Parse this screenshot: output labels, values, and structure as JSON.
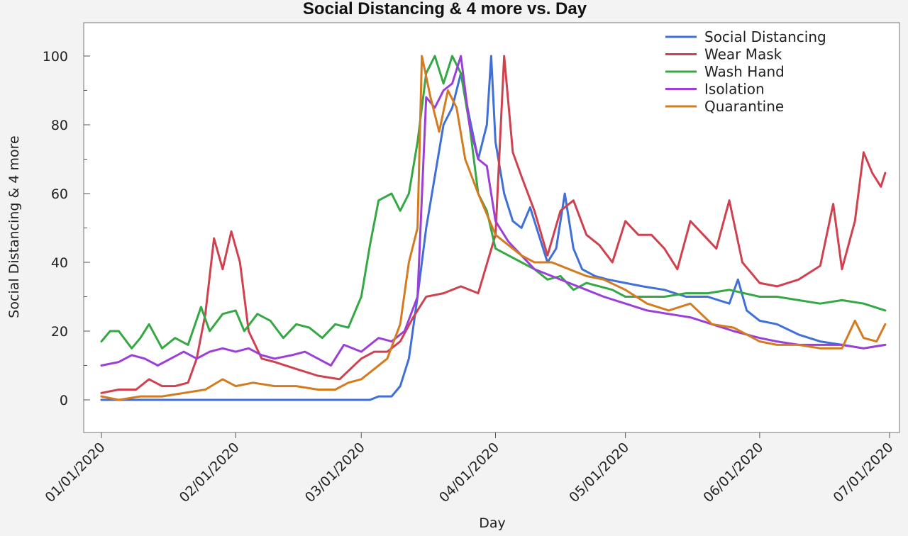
{
  "chart_data": {
    "type": "line",
    "title": "Social Distancing & 4 more vs. Day",
    "xlabel": "Day",
    "ylabel": "Social Distancing & 4 more",
    "x_start": "01/01/2020",
    "x_end": "06/30/2020",
    "x_ticks": [
      "01/01/2020",
      "02/01/2020",
      "03/01/2020",
      "04/01/2020",
      "05/01/2020",
      "06/01/2020",
      "07/01/2020"
    ],
    "ylim": [
      -10,
      110
    ],
    "y_ticks": [
      0,
      20,
      40,
      60,
      80,
      100
    ],
    "grid": false,
    "legend_position": "top-right",
    "series": [
      {
        "name": "Social Distancing",
        "color": "#3f6fd8",
        "points": [
          [
            "01/01/2020",
            0
          ],
          [
            "01/15/2020",
            0
          ],
          [
            "02/01/2020",
            0
          ],
          [
            "02/15/2020",
            0
          ],
          [
            "03/01/2020",
            0
          ],
          [
            "03/03/2020",
            0
          ],
          [
            "03/05/2020",
            1
          ],
          [
            "03/08/2020",
            1
          ],
          [
            "03/10/2020",
            4
          ],
          [
            "03/12/2020",
            12
          ],
          [
            "03/14/2020",
            30
          ],
          [
            "03/16/2020",
            50
          ],
          [
            "03/18/2020",
            65
          ],
          [
            "03/20/2020",
            80
          ],
          [
            "03/22/2020",
            85
          ],
          [
            "03/24/2020",
            95
          ],
          [
            "03/26/2020",
            82
          ],
          [
            "03/28/2020",
            70
          ],
          [
            "03/30/2020",
            80
          ],
          [
            "03/31/2020",
            100
          ],
          [
            "04/01/2020",
            75
          ],
          [
            "04/03/2020",
            60
          ],
          [
            "04/05/2020",
            52
          ],
          [
            "04/07/2020",
            50
          ],
          [
            "04/09/2020",
            56
          ],
          [
            "04/11/2020",
            48
          ],
          [
            "04/13/2020",
            40
          ],
          [
            "04/15/2020",
            44
          ],
          [
            "04/17/2020",
            60
          ],
          [
            "04/19/2020",
            44
          ],
          [
            "04/21/2020",
            38
          ],
          [
            "04/24/2020",
            36
          ],
          [
            "04/27/2020",
            35
          ],
          [
            "05/01/2020",
            34
          ],
          [
            "05/05/2020",
            33
          ],
          [
            "05/10/2020",
            32
          ],
          [
            "05/15/2020",
            30
          ],
          [
            "05/20/2020",
            30
          ],
          [
            "05/25/2020",
            28
          ],
          [
            "05/27/2020",
            35
          ],
          [
            "05/29/2020",
            26
          ],
          [
            "06/01/2020",
            23
          ],
          [
            "06/05/2020",
            22
          ],
          [
            "06/10/2020",
            19
          ],
          [
            "06/15/2020",
            17
          ],
          [
            "06/20/2020",
            16
          ],
          [
            "06/25/2020",
            15
          ],
          [
            "06/30/2020",
            16
          ]
        ]
      },
      {
        "name": "Wear Mask",
        "color": "#d0414f",
        "points": [
          [
            "01/01/2020",
            2
          ],
          [
            "01/05/2020",
            3
          ],
          [
            "01/09/2020",
            3
          ],
          [
            "01/12/2020",
            6
          ],
          [
            "01/15/2020",
            4
          ],
          [
            "01/18/2020",
            4
          ],
          [
            "01/21/2020",
            5
          ],
          [
            "01/23/2020",
            12
          ],
          [
            "01/25/2020",
            25
          ],
          [
            "01/27/2020",
            47
          ],
          [
            "01/29/2020",
            38
          ],
          [
            "01/31/2020",
            49
          ],
          [
            "02/02/2020",
            40
          ],
          [
            "02/04/2020",
            20
          ],
          [
            "02/07/2020",
            12
          ],
          [
            "02/10/2020",
            11
          ],
          [
            "02/15/2020",
            9
          ],
          [
            "02/20/2020",
            7
          ],
          [
            "02/25/2020",
            6
          ],
          [
            "03/01/2020",
            12
          ],
          [
            "03/04/2020",
            14
          ],
          [
            "03/07/2020",
            14
          ],
          [
            "03/10/2020",
            17
          ],
          [
            "03/13/2020",
            24
          ],
          [
            "03/16/2020",
            30
          ],
          [
            "03/20/2020",
            31
          ],
          [
            "03/24/2020",
            33
          ],
          [
            "03/28/2020",
            31
          ],
          [
            "04/01/2020",
            48
          ],
          [
            "04/03/2020",
            100
          ],
          [
            "04/05/2020",
            72
          ],
          [
            "04/07/2020",
            65
          ],
          [
            "04/10/2020",
            55
          ],
          [
            "04/13/2020",
            42
          ],
          [
            "04/16/2020",
            55
          ],
          [
            "04/19/2020",
            58
          ],
          [
            "04/22/2020",
            48
          ],
          [
            "04/25/2020",
            45
          ],
          [
            "04/28/2020",
            40
          ],
          [
            "05/01/2020",
            52
          ],
          [
            "05/04/2020",
            48
          ],
          [
            "05/07/2020",
            48
          ],
          [
            "05/10/2020",
            44
          ],
          [
            "05/13/2020",
            38
          ],
          [
            "05/16/2020",
            52
          ],
          [
            "05/19/2020",
            48
          ],
          [
            "05/22/2020",
            44
          ],
          [
            "05/25/2020",
            58
          ],
          [
            "05/28/2020",
            40
          ],
          [
            "06/01/2020",
            34
          ],
          [
            "06/05/2020",
            33
          ],
          [
            "06/10/2020",
            35
          ],
          [
            "06/15/2020",
            39
          ],
          [
            "06/18/2020",
            57
          ],
          [
            "06/20/2020",
            38
          ],
          [
            "06/23/2020",
            52
          ],
          [
            "06/25/2020",
            72
          ],
          [
            "06/27/2020",
            66
          ],
          [
            "06/29/2020",
            62
          ],
          [
            "06/30/2020",
            66
          ]
        ]
      },
      {
        "name": "Wash Hand",
        "color": "#35a845",
        "points": [
          [
            "01/01/2020",
            17
          ],
          [
            "01/03/2020",
            20
          ],
          [
            "01/05/2020",
            20
          ],
          [
            "01/08/2020",
            15
          ],
          [
            "01/10/2020",
            18
          ],
          [
            "01/12/2020",
            22
          ],
          [
            "01/15/2020",
            15
          ],
          [
            "01/18/2020",
            18
          ],
          [
            "01/21/2020",
            16
          ],
          [
            "01/24/2020",
            27
          ],
          [
            "01/26/2020",
            20
          ],
          [
            "01/29/2020",
            25
          ],
          [
            "02/01/2020",
            26
          ],
          [
            "02/03/2020",
            20
          ],
          [
            "02/06/2020",
            25
          ],
          [
            "02/09/2020",
            23
          ],
          [
            "02/12/2020",
            18
          ],
          [
            "02/15/2020",
            22
          ],
          [
            "02/18/2020",
            21
          ],
          [
            "02/21/2020",
            18
          ],
          [
            "02/24/2020",
            22
          ],
          [
            "02/27/2020",
            21
          ],
          [
            "03/01/2020",
            30
          ],
          [
            "03/03/2020",
            45
          ],
          [
            "03/05/2020",
            58
          ],
          [
            "03/08/2020",
            60
          ],
          [
            "03/10/2020",
            55
          ],
          [
            "03/12/2020",
            60
          ],
          [
            "03/14/2020",
            75
          ],
          [
            "03/16/2020",
            95
          ],
          [
            "03/18/2020",
            100
          ],
          [
            "03/20/2020",
            92
          ],
          [
            "03/22/2020",
            100
          ],
          [
            "03/24/2020",
            95
          ],
          [
            "03/26/2020",
            80
          ],
          [
            "03/28/2020",
            60
          ],
          [
            "03/30/2020",
            55
          ],
          [
            "04/01/2020",
            44
          ],
          [
            "04/04/2020",
            42
          ],
          [
            "04/07/2020",
            40
          ],
          [
            "04/10/2020",
            38
          ],
          [
            "04/13/2020",
            35
          ],
          [
            "04/16/2020",
            36
          ],
          [
            "04/19/2020",
            32
          ],
          [
            "04/22/2020",
            34
          ],
          [
            "04/25/2020",
            33
          ],
          [
            "04/28/2020",
            32
          ],
          [
            "05/01/2020",
            30
          ],
          [
            "05/05/2020",
            30
          ],
          [
            "05/10/2020",
            30
          ],
          [
            "05/15/2020",
            31
          ],
          [
            "05/20/2020",
            31
          ],
          [
            "05/25/2020",
            32
          ],
          [
            "06/01/2020",
            30
          ],
          [
            "06/05/2020",
            30
          ],
          [
            "06/10/2020",
            29
          ],
          [
            "06/15/2020",
            28
          ],
          [
            "06/20/2020",
            29
          ],
          [
            "06/25/2020",
            28
          ],
          [
            "06/30/2020",
            26
          ]
        ]
      },
      {
        "name": "Isolation",
        "color": "#9b3fd8",
        "points": [
          [
            "01/01/2020",
            10
          ],
          [
            "01/05/2020",
            11
          ],
          [
            "01/08/2020",
            13
          ],
          [
            "01/11/2020",
            12
          ],
          [
            "01/14/2020",
            10
          ],
          [
            "01/17/2020",
            12
          ],
          [
            "01/20/2020",
            14
          ],
          [
            "01/23/2020",
            12
          ],
          [
            "01/26/2020",
            14
          ],
          [
            "01/29/2020",
            15
          ],
          [
            "02/01/2020",
            14
          ],
          [
            "02/04/2020",
            15
          ],
          [
            "02/07/2020",
            13
          ],
          [
            "02/10/2020",
            12
          ],
          [
            "02/14/2020",
            13
          ],
          [
            "02/17/2020",
            14
          ],
          [
            "02/20/2020",
            12
          ],
          [
            "02/23/2020",
            10
          ],
          [
            "02/26/2020",
            16
          ],
          [
            "03/01/2020",
            14
          ],
          [
            "03/05/2020",
            18
          ],
          [
            "03/08/2020",
            17
          ],
          [
            "03/11/2020",
            20
          ],
          [
            "03/14/2020",
            30
          ],
          [
            "03/16/2020",
            88
          ],
          [
            "03/18/2020",
            85
          ],
          [
            "03/20/2020",
            90
          ],
          [
            "03/22/2020",
            92
          ],
          [
            "03/24/2020",
            100
          ],
          [
            "03/26/2020",
            80
          ],
          [
            "03/28/2020",
            70
          ],
          [
            "03/30/2020",
            68
          ],
          [
            "04/01/2020",
            52
          ],
          [
            "04/04/2020",
            46
          ],
          [
            "04/07/2020",
            42
          ],
          [
            "04/10/2020",
            38
          ],
          [
            "04/14/2020",
            36
          ],
          [
            "04/18/2020",
            34
          ],
          [
            "04/22/2020",
            32
          ],
          [
            "04/26/2020",
            30
          ],
          [
            "05/01/2020",
            28
          ],
          [
            "05/06/2020",
            26
          ],
          [
            "05/11/2020",
            25
          ],
          [
            "05/16/2020",
            24
          ],
          [
            "05/21/2020",
            22
          ],
          [
            "05/26/2020",
            20
          ],
          [
            "06/01/2020",
            18
          ],
          [
            "06/05/2020",
            17
          ],
          [
            "06/10/2020",
            16
          ],
          [
            "06/15/2020",
            16
          ],
          [
            "06/20/2020",
            16
          ],
          [
            "06/25/2020",
            15
          ],
          [
            "06/30/2020",
            16
          ]
        ]
      },
      {
        "name": "Quarantine",
        "color": "#d47a1f",
        "points": [
          [
            "01/01/2020",
            1
          ],
          [
            "01/05/2020",
            0
          ],
          [
            "01/10/2020",
            1
          ],
          [
            "01/15/2020",
            1
          ],
          [
            "01/20/2020",
            2
          ],
          [
            "01/25/2020",
            3
          ],
          [
            "01/29/2020",
            6
          ],
          [
            "02/01/2020",
            4
          ],
          [
            "02/05/2020",
            5
          ],
          [
            "02/10/2020",
            4
          ],
          [
            "02/15/2020",
            4
          ],
          [
            "02/20/2020",
            3
          ],
          [
            "02/24/2020",
            3
          ],
          [
            "02/27/2020",
            5
          ],
          [
            "03/01/2020",
            6
          ],
          [
            "03/04/2020",
            9
          ],
          [
            "03/07/2020",
            12
          ],
          [
            "03/10/2020",
            22
          ],
          [
            "03/12/2020",
            40
          ],
          [
            "03/14/2020",
            50
          ],
          [
            "03/15/2020",
            100
          ],
          [
            "03/17/2020",
            88
          ],
          [
            "03/19/2020",
            78
          ],
          [
            "03/21/2020",
            90
          ],
          [
            "03/23/2020",
            85
          ],
          [
            "03/25/2020",
            70
          ],
          [
            "03/28/2020",
            60
          ],
          [
            "04/01/2020",
            48
          ],
          [
            "04/04/2020",
            45
          ],
          [
            "04/07/2020",
            42
          ],
          [
            "04/10/2020",
            40
          ],
          [
            "04/14/2020",
            40
          ],
          [
            "04/18/2020",
            38
          ],
          [
            "04/22/2020",
            36
          ],
          [
            "04/26/2020",
            35
          ],
          [
            "05/01/2020",
            32
          ],
          [
            "05/06/2020",
            28
          ],
          [
            "05/11/2020",
            26
          ],
          [
            "05/16/2020",
            28
          ],
          [
            "05/21/2020",
            22
          ],
          [
            "05/26/2020",
            21
          ],
          [
            "06/01/2020",
            17
          ],
          [
            "06/05/2020",
            16
          ],
          [
            "06/10/2020",
            16
          ],
          [
            "06/15/2020",
            15
          ],
          [
            "06/20/2020",
            15
          ],
          [
            "06/23/2020",
            23
          ],
          [
            "06/25/2020",
            18
          ],
          [
            "06/28/2020",
            17
          ],
          [
            "06/30/2020",
            22
          ]
        ]
      }
    ]
  }
}
